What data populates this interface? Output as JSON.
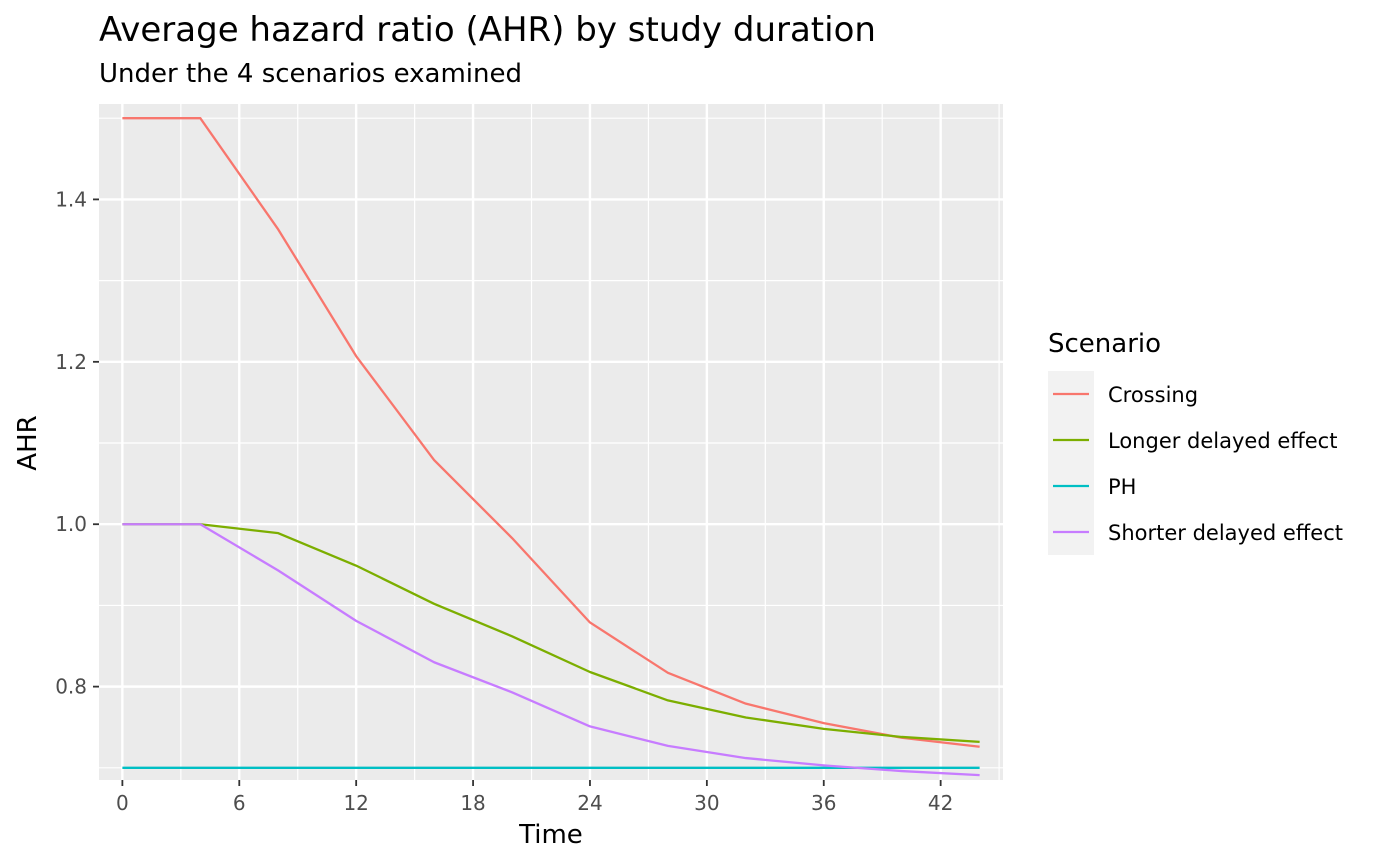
{
  "chart_data": {
    "type": "line",
    "title": "Average hazard ratio (AHR) by study duration",
    "subtitle": "Under the 4 scenarios examined",
    "xlabel": "Time",
    "ylabel": "AHR",
    "xlim": [
      -1.2,
      45.2
    ],
    "ylim": [
      0.685,
      1.5175
    ],
    "x_ticks": [
      0,
      6,
      12,
      18,
      24,
      30,
      36,
      42
    ],
    "y_ticks": [
      0.8,
      1.0,
      1.2,
      1.4
    ],
    "y_tick_labels": [
      "0.8",
      "1.0",
      "1.2",
      "1.4"
    ],
    "grid": true,
    "legend": {
      "title": "Scenario",
      "position": "right"
    },
    "x": [
      0,
      4,
      8,
      12,
      16,
      20,
      24,
      28,
      32,
      36,
      40,
      44
    ],
    "series": [
      {
        "name": "Crossing",
        "color": "#F8766D",
        "values": [
          1.5,
          1.5,
          1.363,
          1.207,
          1.079,
          0.983,
          0.879,
          0.817,
          0.779,
          0.755,
          0.737,
          0.726
        ]
      },
      {
        "name": "Longer delayed effect",
        "color": "#7CAE00",
        "values": [
          1.0,
          1.0,
          0.989,
          0.949,
          0.902,
          0.862,
          0.818,
          0.783,
          0.762,
          0.748,
          0.738,
          0.732
        ]
      },
      {
        "name": "PH",
        "color": "#00BFC4",
        "values": [
          0.7,
          0.7,
          0.7,
          0.7,
          0.7,
          0.7,
          0.7,
          0.7,
          0.7,
          0.7,
          0.7,
          0.7
        ]
      },
      {
        "name": "Shorter delayed effect",
        "color": "#C77CFF",
        "values": [
          1.0,
          1.0,
          0.943,
          0.881,
          0.83,
          0.793,
          0.751,
          0.727,
          0.712,
          0.703,
          0.696,
          0.691
        ]
      }
    ]
  }
}
